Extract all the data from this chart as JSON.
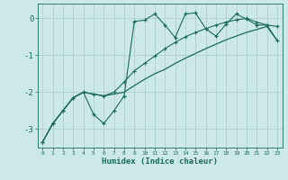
{
  "xlabel": "Humidex (Indice chaleur)",
  "bg_color": "#cce8e8",
  "line_color": "#1a6b5a",
  "grid_color": "#a8cccc",
  "x_ticks": [
    0,
    1,
    2,
    3,
    4,
    5,
    6,
    7,
    8,
    9,
    10,
    11,
    12,
    13,
    14,
    15,
    16,
    17,
    18,
    19,
    20,
    21,
    22,
    23
  ],
  "ylim": [
    -3.5,
    0.4
  ],
  "yticks": [
    0,
    -1,
    -2,
    -3
  ],
  "line1_x": [
    0,
    1,
    2,
    3,
    4,
    5,
    6,
    7,
    8,
    9,
    10,
    11,
    12,
    13,
    14,
    15,
    16,
    17,
    18,
    19,
    20,
    21,
    22,
    23
  ],
  "line1_y": [
    -3.35,
    -2.85,
    -2.5,
    -2.15,
    -2.0,
    -2.6,
    -2.85,
    -2.5,
    -2.1,
    -0.08,
    -0.05,
    0.12,
    -0.18,
    -0.52,
    0.12,
    0.15,
    -0.28,
    -0.48,
    -0.15,
    0.12,
    -0.02,
    -0.18,
    -0.18,
    -0.22
  ],
  "line2_x": [
    0,
    1,
    2,
    3,
    4,
    5,
    6,
    7,
    8,
    9,
    10,
    11,
    12,
    13,
    14,
    15,
    16,
    17,
    18,
    19,
    20,
    21,
    22,
    23
  ],
  "line2_y": [
    -3.35,
    -2.85,
    -2.5,
    -2.15,
    -2.0,
    -2.05,
    -2.1,
    -2.05,
    -2.0,
    -1.82,
    -1.65,
    -1.5,
    -1.38,
    -1.22,
    -1.08,
    -0.95,
    -0.82,
    -0.7,
    -0.58,
    -0.48,
    -0.38,
    -0.3,
    -0.22,
    -0.6
  ],
  "line3_x": [
    0,
    1,
    2,
    3,
    4,
    5,
    6,
    7,
    8,
    9,
    10,
    11,
    12,
    13,
    14,
    15,
    16,
    17,
    18,
    19,
    20,
    21,
    22,
    23
  ],
  "line3_y": [
    -3.35,
    -2.85,
    -2.5,
    -2.15,
    -2.0,
    -2.05,
    -2.1,
    -2.0,
    -1.72,
    -1.42,
    -1.22,
    -1.02,
    -0.82,
    -0.65,
    -0.5,
    -0.38,
    -0.28,
    -0.18,
    -0.1,
    -0.04,
    0.0,
    -0.1,
    -0.18,
    -0.6
  ]
}
